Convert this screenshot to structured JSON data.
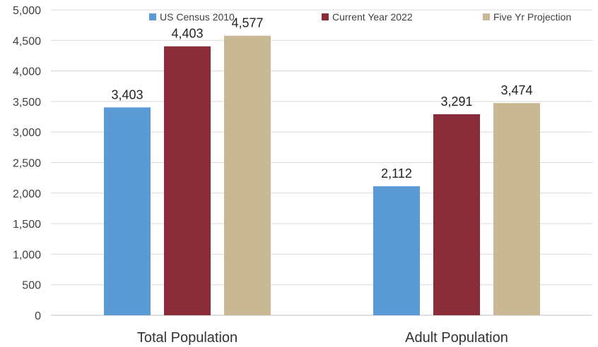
{
  "chart_data": {
    "type": "bar",
    "title": "",
    "xlabel": "",
    "ylabel": "",
    "categories": [
      "Total Population",
      "Adult Population"
    ],
    "series": [
      {
        "name": "US Census 2010",
        "values": [
          3403,
          2112
        ],
        "color": "#5b9bd5"
      },
      {
        "name": "Current Year 2022",
        "values": [
          4403,
          3291
        ],
        "color": "#8b2c3a"
      },
      {
        "name": "Five Yr Projection",
        "values": [
          4577,
          3474
        ],
        "color": "#c8b994"
      }
    ],
    "ylim": [
      0,
      5000
    ],
    "ytick_step": 500,
    "y_tick_labels": [
      "0",
      "500",
      "1,000",
      "1,500",
      "2,000",
      "2,500",
      "3,000",
      "3,500",
      "4,000",
      "4,500",
      "5,000"
    ],
    "data_labels": [
      [
        "3,403",
        "2,112"
      ],
      [
        "4,403",
        "3,291"
      ],
      [
        "4,577",
        "3,474"
      ]
    ],
    "grid": true,
    "legend_position": "top"
  }
}
